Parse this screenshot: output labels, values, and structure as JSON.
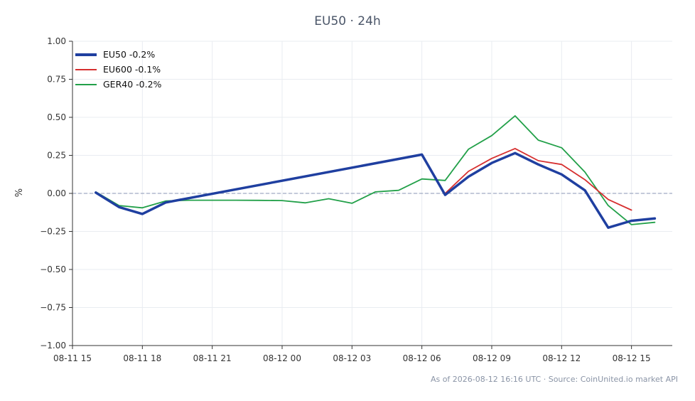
{
  "chart_data": {
    "type": "line",
    "title": "EU50 · 24h",
    "ylabel": "%",
    "xlabel": "",
    "ylim": [
      -1.0,
      1.0
    ],
    "yticks": [
      "1.00",
      "0.75",
      "0.50",
      "0.25",
      "0.00",
      "−0.25",
      "−0.50",
      "−0.75",
      "−1.00"
    ],
    "yticks_values": [
      1.0,
      0.75,
      0.5,
      0.25,
      0.0,
      -0.25,
      -0.5,
      -0.75,
      -1.0
    ],
    "xlim": [
      "08-11 15:00",
      "08-12 16:45"
    ],
    "xticks": [
      "08-11 15",
      "08-11 18",
      "08-11 21",
      "08-12 00",
      "08-12 03",
      "08-12 06",
      "08-12 09",
      "08-12 12",
      "08-12 15"
    ],
    "xticks_values": [
      "08-11 15:00",
      "08-11 18:00",
      "08-11 21:00",
      "08-12 00:00",
      "08-12 03:00",
      "08-12 06:00",
      "08-12 09:00",
      "08-12 12:00",
      "08-12 15:00"
    ],
    "grid": true,
    "zero_line": true,
    "legend_position": "top-left",
    "series": [
      {
        "name": "EU50 -0.2%",
        "color": "#1f3fa0",
        "x": [
          "08-11 16:00",
          "08-11 17:00",
          "08-11 18:00",
          "08-11 19:00",
          "08-12 06:00",
          "08-12 07:00",
          "08-12 08:00",
          "08-12 09:00",
          "08-12 10:00",
          "08-12 11:00",
          "08-12 12:00",
          "08-12 13:00",
          "08-12 14:00",
          "08-12 15:00",
          "08-12 16:00"
        ],
        "values": [
          0.005,
          -0.09,
          -0.135,
          -0.06,
          0.255,
          -0.01,
          0.11,
          0.2,
          0.265,
          0.19,
          0.125,
          0.02,
          -0.225,
          -0.18,
          -0.165
        ]
      },
      {
        "name": "EU600 -0.1%",
        "color": "#d62f2f",
        "x": [
          "08-12 07:00",
          "08-12 08:00",
          "08-12 09:00",
          "08-12 10:00",
          "08-12 11:00",
          "08-12 12:00",
          "08-12 13:00",
          "08-12 14:00",
          "08-12 15:00"
        ],
        "values": [
          0.0,
          0.145,
          0.23,
          0.295,
          0.215,
          0.19,
          0.09,
          -0.04,
          -0.11
        ]
      },
      {
        "name": "GER40 -0.2%",
        "color": "#22a049",
        "x": [
          "08-11 16:00",
          "08-11 17:00",
          "08-11 18:00",
          "08-11 19:00",
          "08-11 20:00",
          "08-11 21:00",
          "08-11 22:00",
          "08-11 23:00",
          "08-12 00:00",
          "08-12 01:00",
          "08-12 02:00",
          "08-12 03:00",
          "08-12 04:00",
          "08-12 05:00",
          "08-12 06:00",
          "08-12 07:00",
          "08-12 08:00",
          "08-12 09:00",
          "08-12 10:00",
          "08-12 11:00",
          "08-12 12:00",
          "08-12 13:00",
          "08-12 14:00",
          "08-12 15:00",
          "08-12 16:00"
        ],
        "values": [
          0.01,
          -0.08,
          -0.095,
          -0.05,
          -0.045,
          -0.045,
          -0.045,
          -0.046,
          -0.047,
          -0.062,
          -0.035,
          -0.065,
          0.01,
          0.02,
          0.095,
          0.085,
          0.29,
          0.38,
          0.51,
          0.35,
          0.3,
          0.14,
          -0.08,
          -0.205,
          -0.19
        ]
      }
    ]
  },
  "footer": "As of 2026-08-12 16:16 UTC · Source: CoinUnited.io market API"
}
